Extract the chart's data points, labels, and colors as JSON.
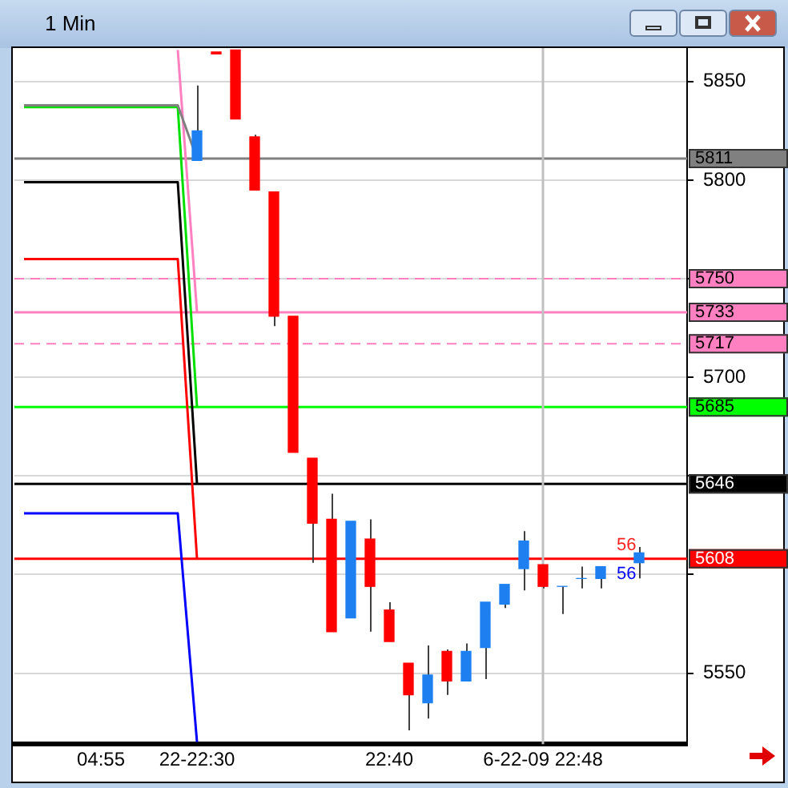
{
  "chart_data": {
    "type": "candlestick",
    "title": "1 Min",
    "categories": [
      null,
      null,
      null,
      null,
      "04:55",
      null,
      null,
      null,
      null,
      "22-22:30",
      null,
      null,
      null,
      null,
      null,
      null,
      null,
      null,
      null,
      "22:40",
      null,
      null,
      null,
      null,
      null,
      null,
      null,
      "6-22-09 22:48",
      null,
      null,
      null,
      null,
      null,
      null,
      null
    ],
    "ohlc": [
      null,
      null,
      null,
      null,
      null,
      null,
      null,
      null,
      null,
      [
        5810,
        5848,
        5810,
        5825
      ],
      [
        5865,
        5865,
        5864,
        5864
      ],
      [
        5866,
        5866,
        5831,
        5831
      ],
      [
        5822,
        5823,
        5795,
        5795
      ],
      [
        5794,
        5794,
        5726,
        5731
      ],
      [
        5731,
        5731,
        5662,
        5662
      ],
      [
        5659,
        5659,
        5606,
        5626
      ],
      [
        5628,
        5641,
        5571,
        5571
      ],
      [
        5578,
        5627,
        5578,
        5627
      ],
      [
        5618,
        5628,
        5571,
        5594
      ],
      [
        5582,
        5586,
        5566,
        5566
      ],
      [
        5555,
        5555,
        5521,
        5539
      ],
      [
        5535,
        5564,
        5527,
        5549
      ],
      [
        5561,
        5562,
        5539,
        5546
      ],
      [
        5546,
        5565,
        5546,
        5561
      ],
      [
        5563,
        5586,
        5547,
        5586
      ],
      [
        5585,
        5595,
        5583,
        5595
      ],
      [
        5603,
        5622,
        5592,
        5617
      ],
      [
        5605,
        5605,
        5593,
        5594
      ],
      [
        5594,
        5594,
        5580,
        5594
      ],
      [
        5598,
        5604,
        5593,
        5598
      ],
      [
        5598,
        5604,
        5593,
        5604
      ],
      null,
      [
        5606,
        5614,
        5598,
        5611
      ],
      null,
      null
    ],
    "colors": [
      null,
      null,
      null,
      null,
      null,
      null,
      null,
      null,
      null,
      "#1e80f0",
      "#ff0000",
      "#ff0000",
      "#ff0000",
      "#ff0000",
      "#ff0000",
      "#ff0000",
      "#ff0000",
      "#1e80f0",
      "#ff0000",
      "#ff0000",
      "#ff0000",
      "#1e80f0",
      "#ff0000",
      "#1e80f0",
      "#1e80f0",
      "#1e80f0",
      "#1e80f0",
      "#ff0000",
      "#1e80f0",
      "#1e80f0",
      "#1e80f0",
      null,
      "#1e80f0",
      null,
      null
    ],
    "series": [
      {
        "type": "line",
        "color": "#808080",
        "values": [
          5838,
          5838,
          5838,
          5838,
          5838,
          5838,
          5838,
          5838,
          5838,
          5811,
          null,
          null,
          null,
          null,
          null,
          null,
          null,
          null,
          null,
          null,
          null,
          null,
          null,
          null,
          null,
          null,
          null,
          null,
          null,
          null,
          null,
          null,
          null,
          null,
          null
        ]
      },
      {
        "type": "line",
        "color": "#00e000",
        "values": [
          5837,
          5837,
          5837,
          5837,
          5837,
          5837,
          5837,
          5837,
          5837,
          5685,
          null,
          null,
          null,
          null,
          null,
          null,
          null,
          null,
          null,
          null,
          null,
          null,
          null,
          null,
          null,
          null,
          null,
          null,
          null,
          null,
          null,
          null,
          null,
          null,
          null
        ]
      },
      {
        "type": "line",
        "color": "#000000",
        "values": [
          5799,
          5799,
          5799,
          5799,
          5799,
          5799,
          5799,
          5799,
          5799,
          5646,
          null,
          null,
          null,
          null,
          null,
          null,
          null,
          null,
          null,
          null,
          null,
          null,
          null,
          null,
          null,
          null,
          null,
          null,
          null,
          null,
          null,
          null,
          null,
          null,
          null
        ]
      },
      {
        "type": "line",
        "color": "#ff0000",
        "values": [
          5760,
          5760,
          5760,
          5760,
          5760,
          5760,
          5760,
          5760,
          5760,
          5608,
          null,
          null,
          null,
          null,
          null,
          null,
          null,
          null,
          null,
          null,
          null,
          null,
          null,
          null,
          null,
          null,
          null,
          null,
          null,
          null,
          null,
          null,
          null,
          null,
          null
        ]
      },
      {
        "type": "line",
        "color": "#ff80c0",
        "values": [
          null,
          null,
          null,
          null,
          null,
          null,
          null,
          null,
          5866,
          5733,
          null,
          null,
          null,
          null,
          null,
          null,
          null,
          null,
          null,
          null,
          null,
          null,
          null,
          null,
          null,
          null,
          null,
          null,
          null,
          null,
          null,
          null,
          null,
          null,
          null
        ]
      },
      {
        "type": "line",
        "color": "#0000ff",
        "values": [
          5631,
          5631,
          5631,
          5631,
          5631,
          5631,
          5631,
          5631,
          5631,
          5515,
          null,
          null,
          null,
          null,
          null,
          null,
          null,
          null,
          null,
          null,
          null,
          null,
          null,
          null,
          null,
          null,
          null,
          null,
          null,
          null,
          null,
          null,
          null,
          null,
          null
        ]
      }
    ],
    "ylim": [
      5514,
      5867
    ],
    "yticks": [
      5550,
      {
        "value": 5600,
        "label": null
      },
      {
        "value": 5650,
        "label": null
      },
      5700,
      {
        "value": 5750,
        "label": null
      },
      5800,
      5850
    ],
    "grid": "y",
    "ref_lines": [
      {
        "axis": "y",
        "value": 5811,
        "label": "5811",
        "color": "#808080"
      },
      {
        "axis": "y",
        "value": 5750,
        "label": "5750",
        "color": "#ff80c0",
        "line_style": "dashed"
      },
      {
        "axis": "y",
        "value": 5733,
        "label": "5733",
        "color": "#ff80c0"
      },
      {
        "axis": "y",
        "value": 5717,
        "label": "5717",
        "color": "#ff80c0",
        "line_style": "dashed"
      },
      {
        "axis": "y",
        "value": 5685,
        "label": "5685",
        "color": "#00ff00"
      },
      {
        "axis": "y",
        "value": 5646,
        "label": "5646",
        "color": "#000000"
      },
      {
        "axis": "y",
        "value": 5608,
        "label": "5608",
        "color": "#ff0000"
      },
      {
        "axis": "x",
        "value": "6-22-09 22:48",
        "color": "#c0c0c0"
      }
    ],
    "annotations": [
      "56",
      "56"
    ]
  }
}
